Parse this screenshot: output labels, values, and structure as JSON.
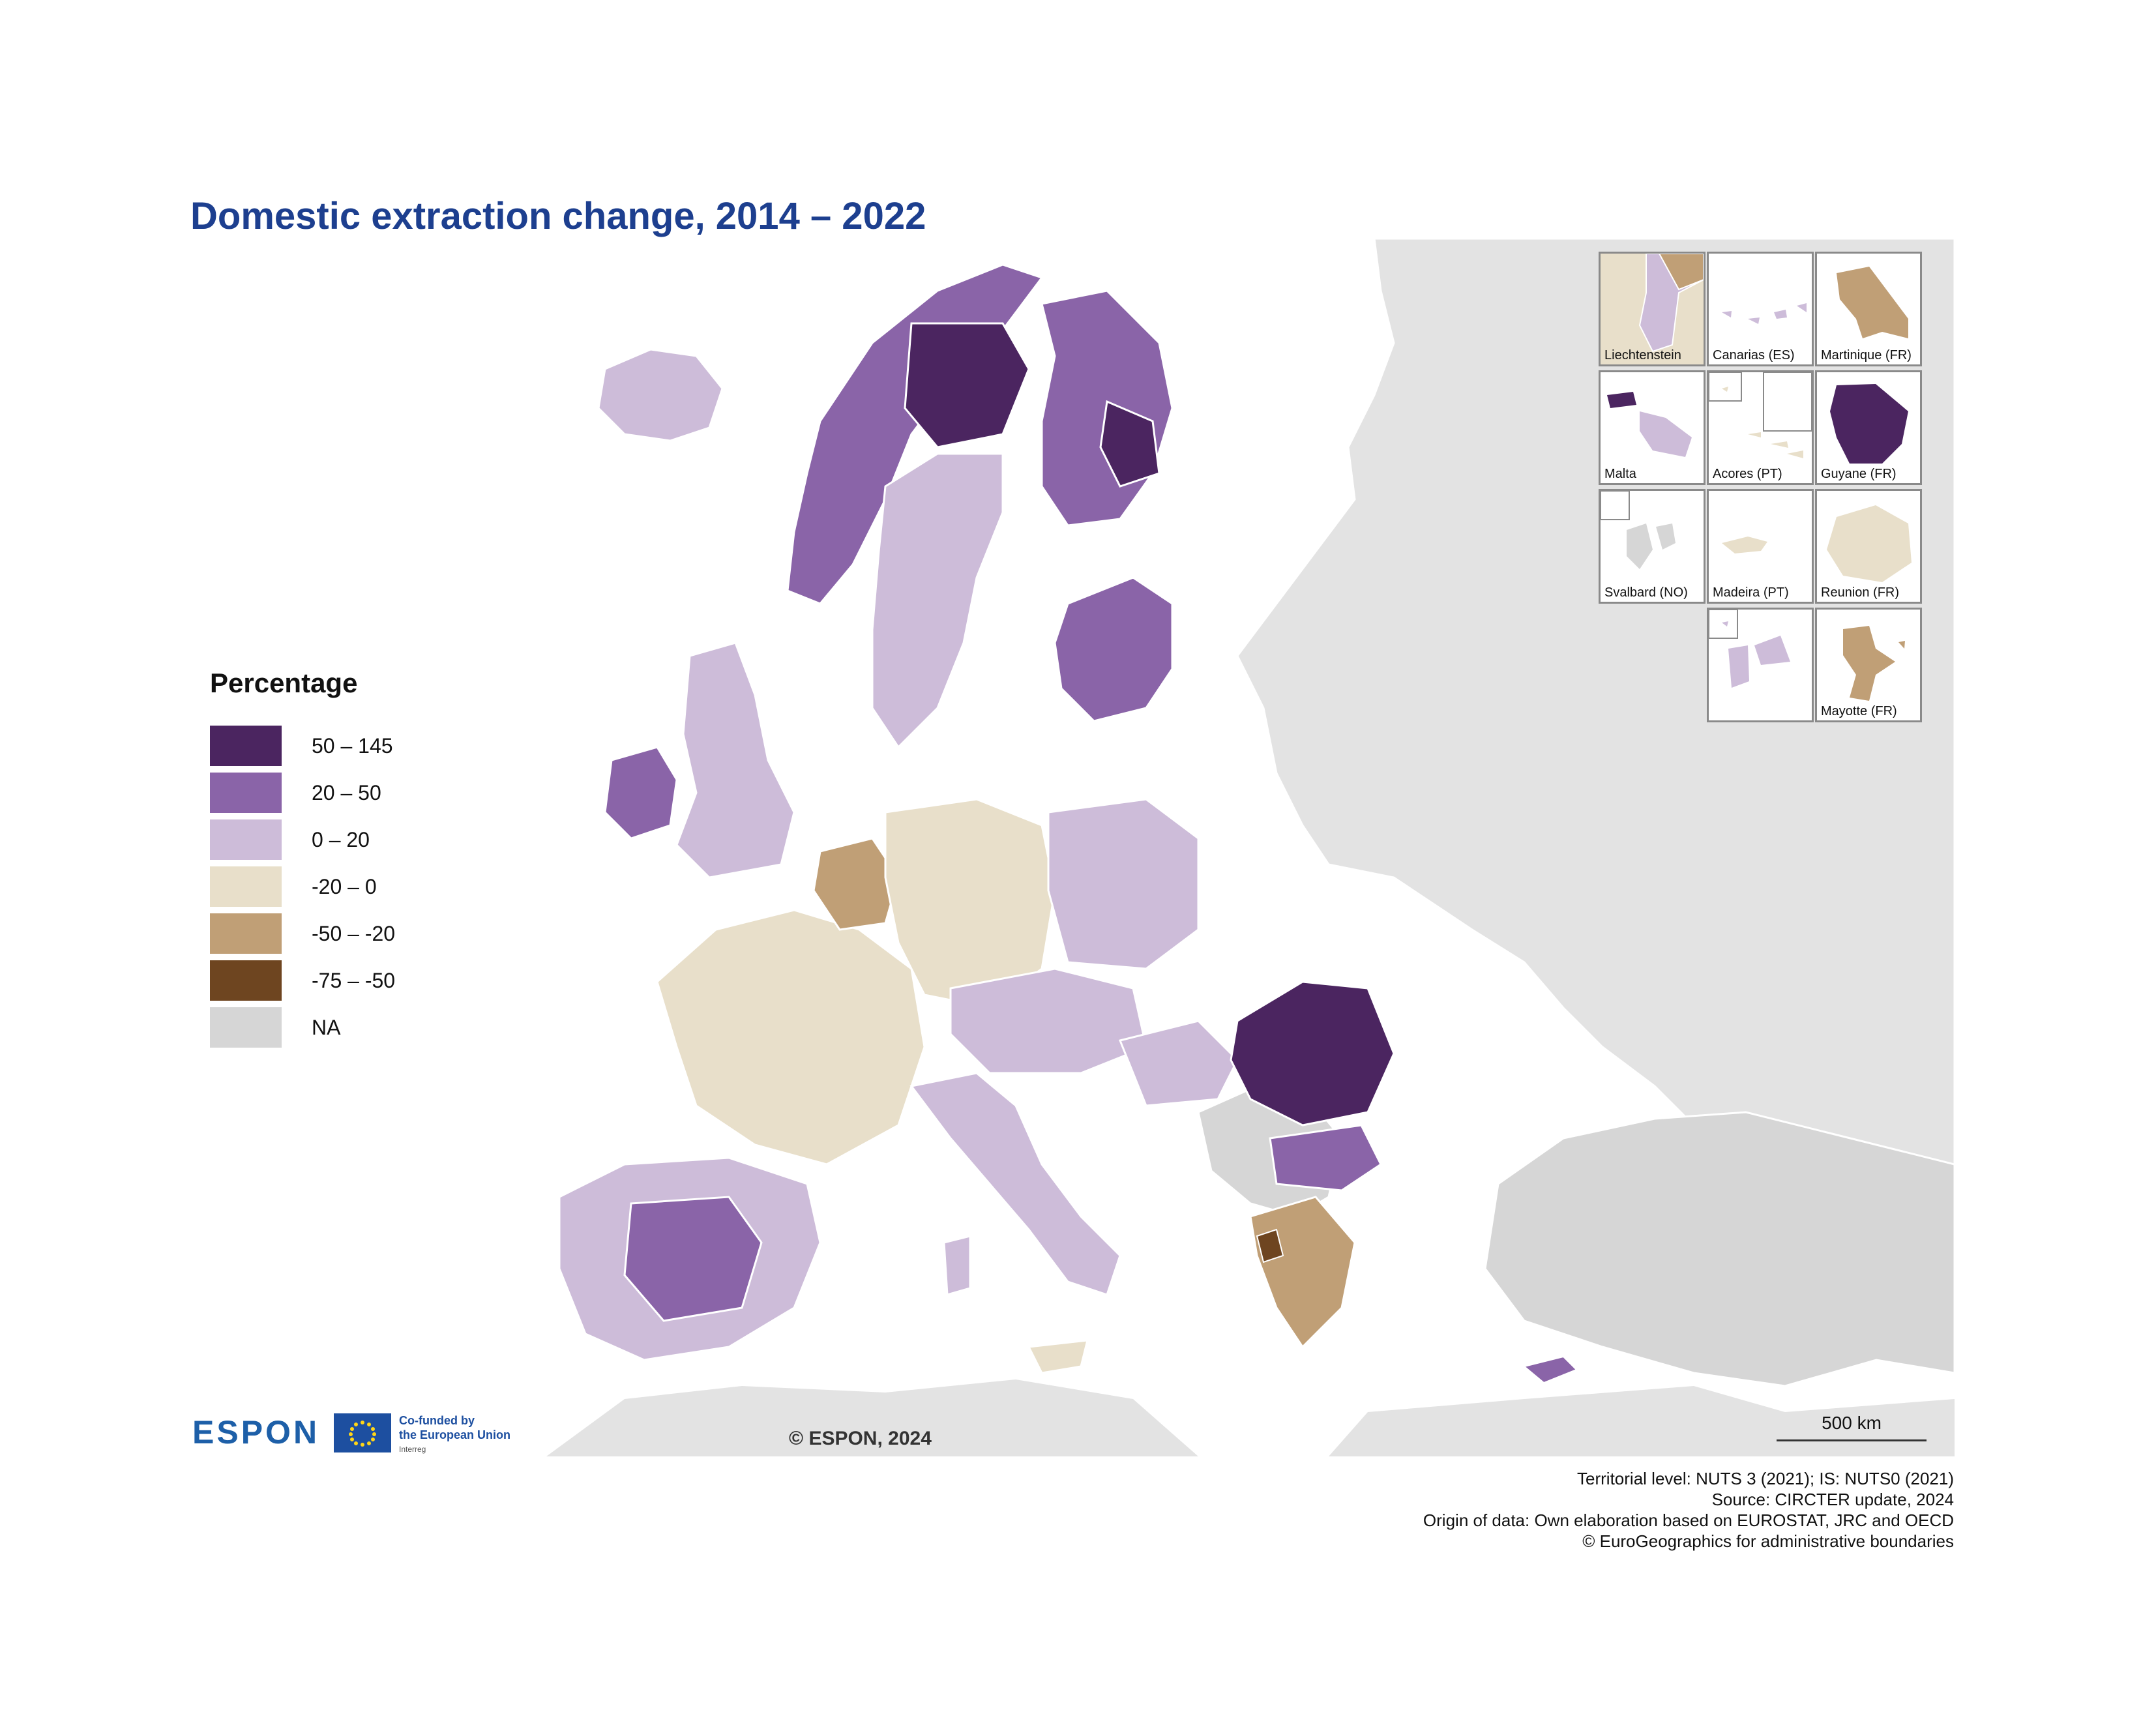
{
  "title": "Domestic extraction change, 2014 – 2022",
  "legend": {
    "title": "Percentage",
    "items": [
      {
        "label": "50 – 145",
        "color": "#4b2560"
      },
      {
        "label": "20 – 50",
        "color": "#8a64a8"
      },
      {
        "label": "0 – 20",
        "color": "#cdbcd9"
      },
      {
        "label": "-20 – 0",
        "color": "#e8dfca"
      },
      {
        "label": "-50 – -20",
        "color": "#c09f76"
      },
      {
        "label": "-75 – -50",
        "color": "#6e4520"
      },
      {
        "label": "NA",
        "color": "#d6d6d6"
      }
    ]
  },
  "insets": [
    {
      "label": "Liechtenstein"
    },
    {
      "label": "Canarias (ES)"
    },
    {
      "label": "Martinique (FR)"
    },
    {
      "label": "Malta"
    },
    {
      "label": "Acores (PT)"
    },
    {
      "label": "Guyane (FR)"
    },
    {
      "label": "Svalbard (NO)"
    },
    {
      "label": "Madeira (PT)"
    },
    {
      "label": "Reunion (FR)"
    },
    {
      "label": "Mayotte (FR)"
    }
  ],
  "scale_label": "500 km",
  "copyright": "© ESPON, 2024",
  "logo": {
    "espon": "ESPON",
    "eu_line1": "Co-funded by",
    "eu_line2": "the European Union",
    "eu_line3": "Interreg"
  },
  "footer": [
    "Territorial level: NUTS 3 (2021); IS: NUTS0 (2021)",
    "Source: CIRCTER update, 2024",
    "Origin of data: Own elaboration based on EUROSTAT, JRC and OECD",
    "© EuroGeographics for administrative boundaries"
  ],
  "colors": {
    "background_na": "#e3e3e3",
    "sea": "#ffffff",
    "title": "#1d3f8f"
  }
}
